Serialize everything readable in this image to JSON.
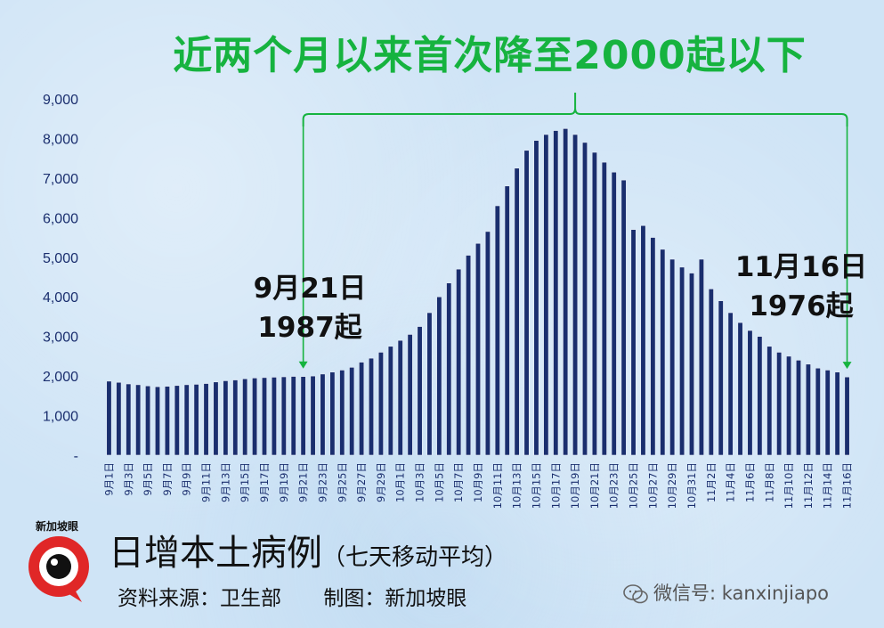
{
  "title": "近两个月以来首次降至2000起以下",
  "annotation_left": {
    "line1": "9月21日",
    "line2": "1987起"
  },
  "annotation_right": {
    "line1": "11月16日",
    "line2": "1976起"
  },
  "footer": {
    "main": "日增本土病例",
    "sub": "（七天移动平均）",
    "source": "资料来源：卫生部",
    "maker": "制图：新加坡眼"
  },
  "logo_text": "新加坡眼",
  "watermark": "微信号: kanxinjiapo",
  "colors": {
    "bar": "#1a2e6e",
    "accent": "#16b33f",
    "axis_text": "#1a2e6e"
  },
  "chart_data": {
    "type": "bar",
    "y_ticks": [
      "-",
      "1,000",
      "2,000",
      "3,000",
      "4,000",
      "5,000",
      "6,000",
      "7,000",
      "8,000",
      "9,000"
    ],
    "ylim": [
      0,
      9000
    ],
    "categories": [
      "9月1日",
      "9月2日",
      "9月3日",
      "9月4日",
      "9月5日",
      "9月6日",
      "9月7日",
      "9月8日",
      "9月9日",
      "9月10日",
      "9月11日",
      "9月12日",
      "9月13日",
      "9月14日",
      "9月15日",
      "9月16日",
      "9月17日",
      "9月18日",
      "9月19日",
      "9月20日",
      "9月21日",
      "9月22日",
      "9月23日",
      "9月24日",
      "9月25日",
      "9月26日",
      "9月27日",
      "9月28日",
      "9月29日",
      "9月30日",
      "10月1日",
      "10月2日",
      "10月3日",
      "10月4日",
      "10月5日",
      "10月6日",
      "10月7日",
      "10月8日",
      "10月9日",
      "10月10日",
      "10月11日",
      "10月12日",
      "10月13日",
      "10月14日",
      "10月15日",
      "10月16日",
      "10月17日",
      "10月18日",
      "10月19日",
      "10月20日",
      "10月21日",
      "10月22日",
      "10月23日",
      "10月24日",
      "10月25日",
      "10月26日",
      "10月27日",
      "10月28日",
      "10月29日",
      "10月30日",
      "10月31日",
      "11月1日",
      "11月2日",
      "11月3日",
      "11月4日",
      "11月5日",
      "11月6日",
      "11月7日",
      "11月8日",
      "11月9日",
      "11月10日",
      "11月11日",
      "11月12日",
      "11月13日",
      "11月14日",
      "11月15日",
      "11月16日"
    ],
    "shown_labels": [
      "9月1日",
      "9月3日",
      "9月5日",
      "9月7日",
      "9月9日",
      "9月11日",
      "9月13日",
      "9月15日",
      "9月17日",
      "9月19日",
      "9月21日",
      "9月23日",
      "9月25日",
      "9月27日",
      "9月29日",
      "10月1日",
      "10月3日",
      "10月5日",
      "10月7日",
      "10月9日",
      "10月11日",
      "10月13日",
      "10月15日",
      "10月17日",
      "10月19日",
      "10月21日",
      "10月23日",
      "10月25日",
      "10月27日",
      "10月29日",
      "10月31日",
      "11月2日",
      "11月4日",
      "11月6日",
      "11月8日",
      "11月10日",
      "11月12日",
      "11月14日",
      "11月16日"
    ],
    "values": [
      1870,
      1840,
      1800,
      1780,
      1750,
      1730,
      1740,
      1760,
      1780,
      1790,
      1810,
      1850,
      1880,
      1900,
      1930,
      1950,
      1960,
      1970,
      1980,
      1990,
      1987,
      2000,
      2050,
      2100,
      2150,
      2220,
      2350,
      2450,
      2600,
      2750,
      2900,
      3050,
      3250,
      3600,
      4000,
      4350,
      4700,
      5050,
      5350,
      5650,
      6300,
      6800,
      7250,
      7700,
      7950,
      8100,
      8200,
      8250,
      8100,
      7900,
      7650,
      7400,
      7150,
      6950,
      5700,
      5800,
      5500,
      5200,
      4950,
      4750,
      4600,
      4950,
      4200,
      3900,
      3600,
      3350,
      3150,
      3000,
      2750,
      2600,
      2500,
      2400,
      2300,
      2200,
      2150,
      2100,
      1976
    ],
    "bracket_start": "9月21日",
    "bracket_end": "11月16日"
  }
}
